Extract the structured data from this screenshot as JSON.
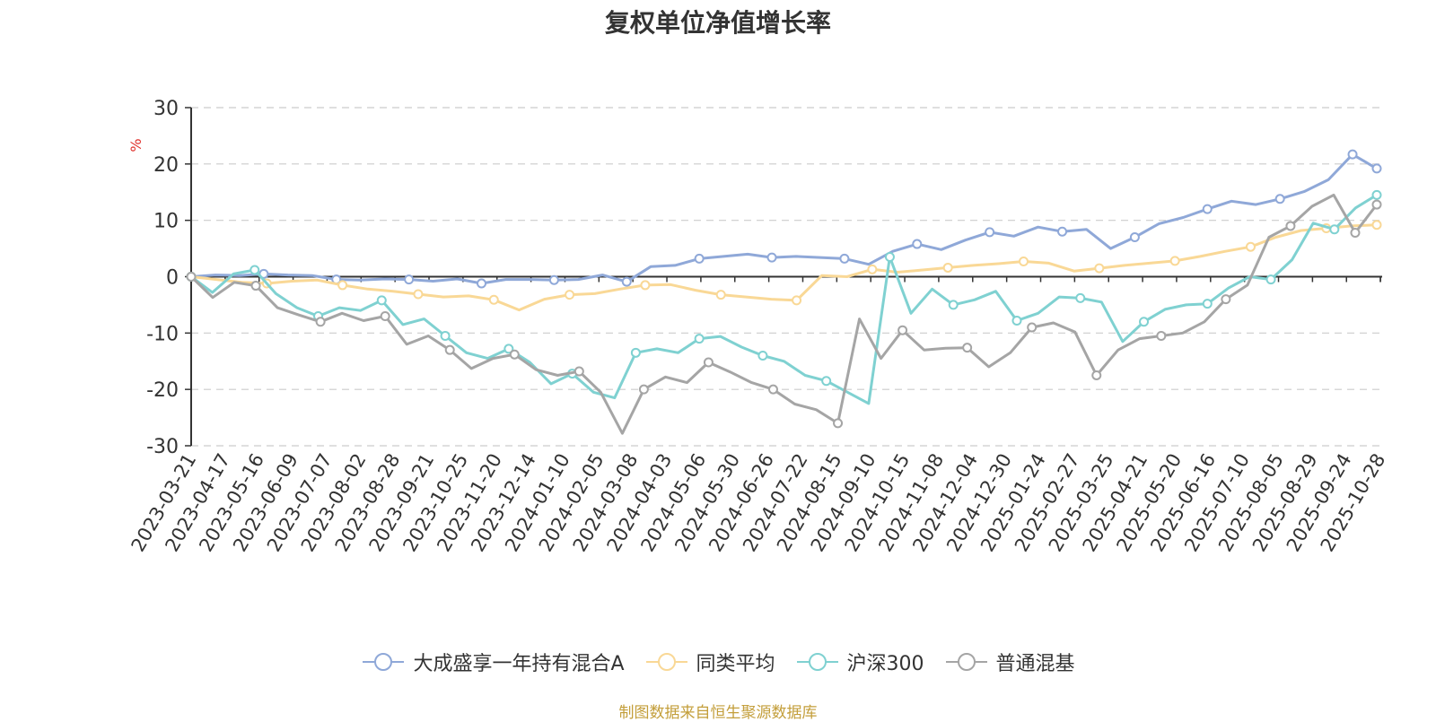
{
  "chart_data": {
    "type": "line",
    "title": "复权单位净值增长率",
    "ylabel": "%",
    "xlabel": "",
    "ylim": [
      -30,
      30
    ],
    "yticks": [
      -30,
      -20,
      -10,
      0,
      10,
      20,
      30
    ],
    "grid": true,
    "legend_position": "bottom",
    "x_tick_labels": [
      "2023-03-21",
      "2023-04-17",
      "2023-05-16",
      "2023-06-09",
      "2023-07-07",
      "2023-08-02",
      "2023-08-28",
      "2023-09-21",
      "2023-10-25",
      "2023-11-20",
      "2023-12-14",
      "2024-01-10",
      "2024-02-05",
      "2024-03-08",
      "2024-04-03",
      "2024-05-06",
      "2024-05-30",
      "2024-06-26",
      "2024-07-22",
      "2024-08-15",
      "2024-09-10",
      "2024-10-15",
      "2024-11-08",
      "2024-12-04",
      "2024-12-30",
      "2025-01-24",
      "2025-02-27",
      "2025-03-25",
      "2025-04-21",
      "2025-05-20",
      "2025-06-16",
      "2025-07-10",
      "2025-08-05",
      "2025-08-29",
      "2025-09-24",
      "2025-10-28"
    ],
    "series": [
      {
        "name": "大成盛享一年持有混合A",
        "color": "#8fa8d8",
        "values": [
          0,
          0.3,
          0.2,
          0.5,
          0.3,
          0.2,
          -0.5,
          -0.6,
          -0.4,
          -0.5,
          -0.8,
          -0.4,
          -1.2,
          -0.5,
          -0.5,
          -0.6,
          -0.5,
          0.3,
          -0.9,
          1.8,
          2,
          3.2,
          3.6,
          4,
          3.4,
          3.6,
          3.4,
          3.2,
          2.2,
          4.5,
          5.8,
          4.8,
          6.5,
          7.9,
          7.2,
          8.8,
          8,
          8.4,
          5,
          7,
          9.4,
          10.5,
          12,
          13.4,
          12.8,
          13.8,
          15.1,
          17.2,
          21.7,
          19.2
        ]
      },
      {
        "name": "同类平均",
        "color": "#f9d896",
        "values": [
          0,
          -0.5,
          -1,
          -1.2,
          -0.8,
          -0.6,
          -1.5,
          -2.2,
          -2.6,
          -3.1,
          -3.6,
          -3.4,
          -4.1,
          -5.9,
          -4,
          -3.2,
          -3,
          -2.2,
          -1.5,
          -1.4,
          -2.4,
          -3.2,
          -3.6,
          -4,
          -4.2,
          0.2,
          0,
          1.3,
          0.8,
          1.2,
          1.6,
          2,
          2.3,
          2.7,
          2.4,
          1,
          1.5,
          2,
          2.4,
          2.8,
          3.6,
          4.5,
          5.3,
          7,
          8.2,
          8.6,
          9,
          9.2
        ]
      },
      {
        "name": "沪深300",
        "color": "#7fd1d1",
        "values": [
          0,
          -2.8,
          0.5,
          1.2,
          -3,
          -5.5,
          -7,
          -5.5,
          -6,
          -4.2,
          -8.5,
          -7.5,
          -10.5,
          -13.5,
          -14.5,
          -12.8,
          -15.2,
          -19,
          -17.2,
          -20.5,
          -21.5,
          -13.5,
          -12.8,
          -13.5,
          -11,
          -10.6,
          -12.5,
          -14,
          -15,
          -17.5,
          -18.5,
          -20.5,
          -22.5,
          3.5,
          -6.5,
          -2.2,
          -5,
          -4.1,
          -2.6,
          -7.8,
          -6.5,
          -3.6,
          -3.8,
          -4.5,
          -11.5,
          -8,
          -5.8,
          -5,
          -4.8,
          -2,
          0,
          -0.5,
          3,
          9.5,
          8.4,
          12.2,
          14.5
        ]
      },
      {
        "name": "普通混基",
        "color": "#a5a5a5",
        "values": [
          0,
          -3.7,
          -1,
          -1.6,
          -5.5,
          -6.8,
          -8,
          -6.5,
          -7.8,
          -7,
          -12,
          -10.5,
          -13,
          -16.3,
          -14.5,
          -13.8,
          -16.5,
          -17.5,
          -16.8,
          -20.5,
          -27.8,
          -20,
          -17.8,
          -18.8,
          -15.2,
          -16.9,
          -18.8,
          -20,
          -22.6,
          -23.6,
          -26,
          -7.5,
          -14.5,
          -9.5,
          -13,
          -12.7,
          -12.6,
          -16,
          -13.5,
          -9,
          -8.2,
          -9.8,
          -17.5,
          -13,
          -11,
          -10.5,
          -10,
          -8,
          -4,
          -1.5,
          7,
          9,
          12.5,
          14.5,
          7.8,
          12.8
        ]
      }
    ]
  },
  "legend": {
    "items": [
      {
        "label": "大成盛享一年持有混合A",
        "color": "#8fa8d8"
      },
      {
        "label": "同类平均",
        "color": "#f9d896"
      },
      {
        "label": "沪深300",
        "color": "#7fd1d1"
      },
      {
        "label": "普通混基",
        "color": "#a5a5a5"
      }
    ]
  },
  "footer": {
    "source_text": "制图数据来自恒生聚源数据库"
  },
  "colors": {
    "axis": "#333333",
    "grid": "#cccccc",
    "ylabel": "#e0312c",
    "source": "#c39e3a"
  }
}
